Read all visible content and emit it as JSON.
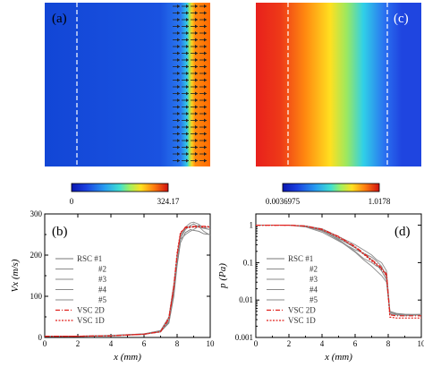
{
  "panels": {
    "a": {
      "label": "(a)",
      "colorbar_min": "0",
      "colorbar_max": "324.17",
      "colors": {
        "low": "#1246d6",
        "high": "#ff6a00"
      }
    },
    "c": {
      "label": "(c)",
      "colorbar_min": "0.0036975",
      "colorbar_max": "1.0178",
      "colors": {
        "low": "#e8201c",
        "high": "#1f45e0"
      }
    }
  },
  "chart_data": [
    {
      "id": "b",
      "type": "line",
      "panel_label": "(b)",
      "xlabel": "x (mm)",
      "ylabel": "Vx (m/s)",
      "xlim": [
        0,
        10
      ],
      "ylim": [
        0,
        300
      ],
      "xticks": [
        "0",
        "2",
        "4",
        "6",
        "8",
        "10"
      ],
      "yticks": [
        "0",
        "100",
        "200",
        "300"
      ],
      "legend": {
        "position": "left",
        "entries": [
          "RSC #1",
          "#2",
          "#3",
          "#4",
          "#5",
          "VSC 2D",
          "VSC 1D"
        ]
      },
      "series": [
        {
          "name": "RSC #1",
          "color": "#777777",
          "style": "solid",
          "x": [
            0,
            2,
            4,
            6,
            7,
            7.5,
            7.8,
            8.0,
            8.2,
            8.5,
            8.8,
            9.0,
            9.3,
            9.6,
            10
          ],
          "y": [
            3,
            3,
            4,
            8,
            14,
            35,
            100,
            175,
            230,
            255,
            262,
            260,
            258,
            252,
            250
          ]
        },
        {
          "name": "#2",
          "color": "#8a8a8a",
          "style": "solid",
          "x": [
            0,
            2,
            4,
            6,
            7,
            7.5,
            7.8,
            8.0,
            8.2,
            8.5,
            8.8,
            9.0,
            9.3,
            9.6,
            10
          ],
          "y": [
            2,
            3,
            5,
            9,
            16,
            45,
            120,
            195,
            240,
            262,
            272,
            276,
            268,
            265,
            262
          ]
        },
        {
          "name": "#3",
          "color": "#8a8a8a",
          "style": "solid",
          "x": [
            0,
            2,
            4,
            6,
            7,
            7.5,
            7.8,
            8.0,
            8.2,
            8.5,
            8.8,
            9.0,
            9.3,
            9.6,
            10
          ],
          "y": [
            3,
            2,
            5,
            7,
            15,
            40,
            110,
            190,
            245,
            265,
            270,
            268,
            272,
            266,
            270
          ]
        },
        {
          "name": "#4",
          "color": "#8a8a8a",
          "style": "solid",
          "x": [
            0,
            2,
            4,
            6,
            7,
            7.5,
            7.8,
            8.0,
            8.2,
            8.5,
            8.8,
            9.0,
            9.3,
            9.6,
            10
          ],
          "y": [
            2,
            3,
            4,
            8,
            13,
            38,
            105,
            185,
            250,
            268,
            278,
            280,
            275,
            266,
            262
          ]
        },
        {
          "name": "#5",
          "color": "#8a8a8a",
          "style": "solid",
          "x": [
            0,
            2,
            4,
            6,
            7,
            7.5,
            7.8,
            8.0,
            8.2,
            8.5,
            8.8,
            9.0,
            9.3,
            9.6,
            10
          ],
          "y": [
            3,
            3,
            5,
            9,
            17,
            50,
            130,
            200,
            238,
            250,
            258,
            262,
            270,
            258,
            248
          ]
        },
        {
          "name": "VSC 2D",
          "color": "#e0201c",
          "style": "dashdot",
          "x": [
            0,
            2,
            4,
            6,
            7,
            7.5,
            7.8,
            8.0,
            8.2,
            8.5,
            9.0,
            10
          ],
          "y": [
            3,
            3,
            4,
            8,
            14,
            45,
            120,
            200,
            252,
            268,
            270,
            270
          ]
        },
        {
          "name": "VSC 1D",
          "color": "#e0201c",
          "style": "dotted",
          "x": [
            0,
            2,
            4,
            6,
            7,
            7.5,
            7.8,
            8.0,
            8.2,
            8.5,
            9.0,
            10
          ],
          "y": [
            3,
            3,
            4,
            8,
            14,
            48,
            125,
            205,
            255,
            266,
            268,
            268
          ]
        }
      ]
    },
    {
      "id": "d",
      "type": "line",
      "panel_label": "(d)",
      "xlabel": "x (mm)",
      "ylabel": "p (Pa)",
      "xlim": [
        0,
        10
      ],
      "ylim": [
        0.001,
        2
      ],
      "yscale": "log",
      "xticks": [
        "0",
        "2",
        "4",
        "6",
        "8",
        "10"
      ],
      "yticks": [
        "0.001",
        "0.01",
        "0.1",
        "1"
      ],
      "legend": {
        "position": "left",
        "entries": [
          "RSC #1",
          "#2",
          "#3",
          "#4",
          "#5",
          "VSC 2D",
          "VSC 1D"
        ]
      },
      "series": [
        {
          "name": "RSC #1",
          "color": "#777777",
          "style": "solid",
          "x": [
            0,
            2,
            3,
            4,
            5,
            6,
            6.5,
            7,
            7.3,
            7.6,
            7.9,
            8.1,
            8.5,
            9,
            10
          ],
          "y": [
            1,
            1,
            0.95,
            0.75,
            0.45,
            0.25,
            0.17,
            0.12,
            0.09,
            0.06,
            0.035,
            0.005,
            0.004,
            0.004,
            0.004
          ]
        },
        {
          "name": "#2",
          "color": "#8a8a8a",
          "style": "solid",
          "x": [
            0,
            2,
            3,
            4,
            5,
            6,
            6.5,
            7,
            7.3,
            7.6,
            7.9,
            8.1,
            8.5,
            9,
            10
          ],
          "y": [
            1,
            1,
            0.93,
            0.7,
            0.42,
            0.2,
            0.13,
            0.1,
            0.08,
            0.07,
            0.05,
            0.0045,
            0.0042,
            0.004,
            0.0042
          ]
        },
        {
          "name": "#3",
          "color": "#8a8a8a",
          "style": "solid",
          "x": [
            0,
            2,
            3,
            4,
            5,
            6,
            6.5,
            7,
            7.3,
            7.6,
            7.9,
            8.1,
            8.5,
            9,
            10
          ],
          "y": [
            1,
            1,
            0.9,
            0.65,
            0.38,
            0.22,
            0.18,
            0.14,
            0.11,
            0.08,
            0.04,
            0.0048,
            0.0043,
            0.0041,
            0.004
          ]
        },
        {
          "name": "#4",
          "color": "#8a8a8a",
          "style": "solid",
          "x": [
            0,
            2,
            3,
            4,
            5,
            6,
            6.5,
            7,
            7.3,
            7.6,
            7.9,
            8.1,
            8.5,
            9,
            10
          ],
          "y": [
            1,
            1,
            0.94,
            0.72,
            0.4,
            0.19,
            0.12,
            0.08,
            0.06,
            0.045,
            0.03,
            0.0042,
            0.004,
            0.0038,
            0.004
          ]
        },
        {
          "name": "#5",
          "color": "#8a8a8a",
          "style": "solid",
          "x": [
            0,
            2,
            3,
            4,
            5,
            6,
            6.5,
            7,
            7.3,
            7.6,
            7.9,
            8.1,
            8.5,
            9,
            10
          ],
          "y": [
            1,
            1,
            0.96,
            0.8,
            0.5,
            0.3,
            0.22,
            0.16,
            0.12,
            0.1,
            0.06,
            0.005,
            0.0044,
            0.0042,
            0.0041
          ]
        },
        {
          "name": "VSC 2D",
          "color": "#e0201c",
          "style": "dashdot",
          "x": [
            0,
            2,
            3,
            4,
            5,
            6,
            6.5,
            7,
            7.5,
            7.9,
            8.1,
            8.5,
            10
          ],
          "y": [
            1,
            1,
            0.95,
            0.78,
            0.5,
            0.27,
            0.18,
            0.12,
            0.08,
            0.05,
            0.004,
            0.0038,
            0.0038
          ]
        },
        {
          "name": "VSC 1D",
          "color": "#e0201c",
          "style": "dotted",
          "x": [
            0,
            2,
            3,
            4,
            5,
            6,
            6.5,
            7,
            7.5,
            7.9,
            8.1,
            8.5,
            10
          ],
          "y": [
            1,
            1,
            0.94,
            0.76,
            0.48,
            0.26,
            0.17,
            0.11,
            0.075,
            0.045,
            0.0035,
            0.0033,
            0.0033
          ]
        }
      ]
    }
  ]
}
